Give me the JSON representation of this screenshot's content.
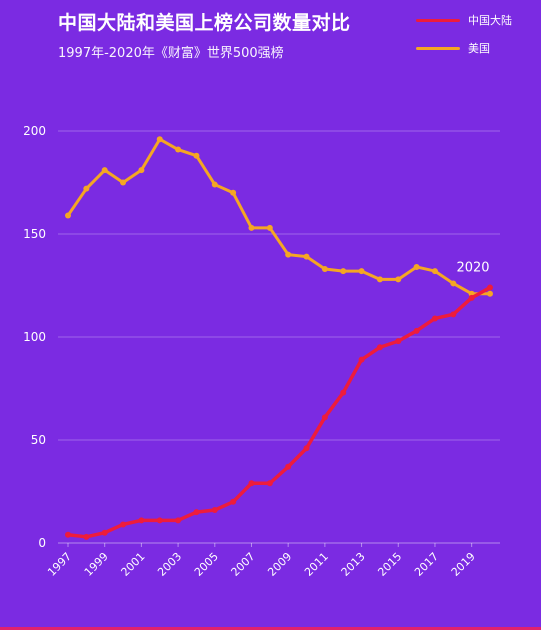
{
  "header": {
    "title": "中国大陆和美国上榜公司数量对比",
    "subtitle": "1997年-2020年《财富》世界500强榜"
  },
  "colors": {
    "background": "#7b2be2",
    "china": "#ee1c3c",
    "usa": "#f5a623"
  },
  "chart_data": {
    "type": "line",
    "x": [
      1997,
      1998,
      1999,
      2000,
      2001,
      2002,
      2003,
      2004,
      2005,
      2006,
      2007,
      2008,
      2009,
      2010,
      2011,
      2012,
      2013,
      2014,
      2015,
      2016,
      2017,
      2018,
      2019,
      2020
    ],
    "x_tick_labels": [
      "1997",
      "1999",
      "2001",
      "2003",
      "2005",
      "2007",
      "2009",
      "2011",
      "2013",
      "2015",
      "2017",
      "2019"
    ],
    "y_tick_labels": [
      "0",
      "50",
      "100",
      "150",
      "200"
    ],
    "ylim": [
      0,
      200
    ],
    "grid": true,
    "legend_position": "top-right",
    "annotation": "2020",
    "series": [
      {
        "name": "中国大陆",
        "color": "#ee1c3c",
        "values": [
          4,
          3,
          5,
          9,
          11,
          11,
          11,
          15,
          16,
          20,
          29,
          29,
          37,
          46,
          61,
          73,
          89,
          95,
          98,
          103,
          109,
          111,
          119,
          124
        ]
      },
      {
        "name": "美国",
        "color": "#f5a623",
        "values": [
          159,
          172,
          181,
          175,
          181,
          196,
          191,
          188,
          174,
          170,
          153,
          153,
          140,
          139,
          133,
          132,
          132,
          128,
          128,
          134,
          132,
          126,
          121,
          121
        ]
      }
    ]
  }
}
